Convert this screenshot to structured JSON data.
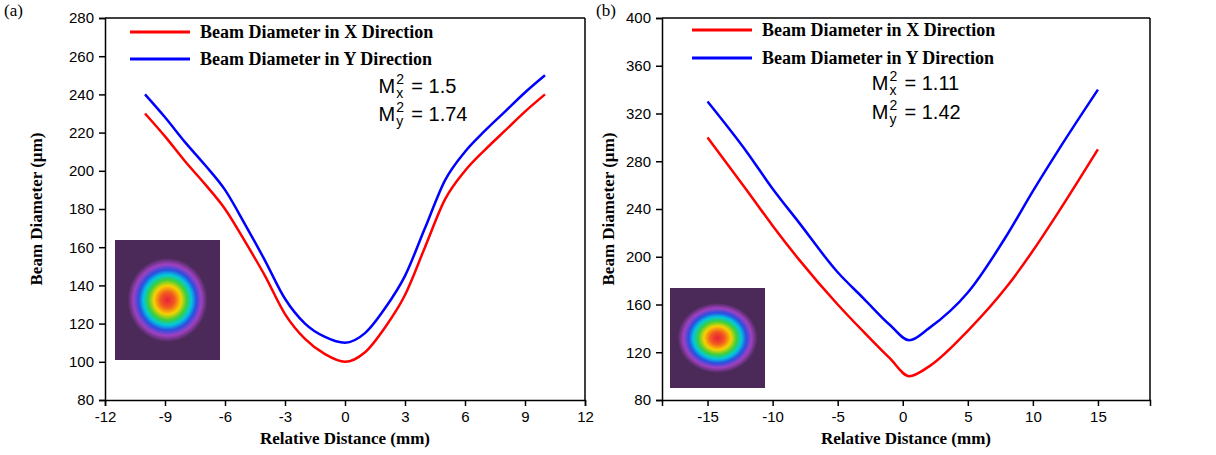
{
  "chart_data": [
    {
      "type": "line",
      "panel_label": "(a)",
      "x_label": "Relative Distance (mm)",
      "y_label": "Beam Diameter (µm)",
      "x": [
        -10,
        -9,
        -8,
        -7,
        -6,
        -5,
        -4,
        -3,
        -2,
        -1,
        0,
        1,
        2,
        3,
        4,
        5,
        6,
        7,
        8,
        9,
        10
      ],
      "series": [
        {
          "name": "Beam Diameter in X Direction",
          "color": "#ff0000",
          "values": [
            230,
            218,
            205,
            193,
            180,
            163,
            145,
            125,
            112,
            104,
            100,
            105,
            118,
            135,
            160,
            185,
            200,
            211,
            221,
            231,
            240
          ]
        },
        {
          "name": "Beam Diameter in Y Direction",
          "color": "#0000ff",
          "values": [
            240,
            228,
            215,
            203,
            190,
            172,
            153,
            133,
            120,
            113,
            110,
            115,
            128,
            145,
            170,
            195,
            210,
            221,
            231,
            241,
            250
          ]
        }
      ],
      "xlim": [
        -12,
        12
      ],
      "xticks": [
        -12,
        -9,
        -6,
        -3,
        0,
        3,
        6,
        9,
        12
      ],
      "ylim": [
        80,
        280
      ],
      "yticks": [
        80,
        100,
        120,
        140,
        160,
        180,
        200,
        220,
        240,
        260,
        280
      ],
      "legend": "top",
      "annotations": [
        {
          "symbol": "M",
          "subscript": "x",
          "superscript": "2",
          "text": "= 1.5"
        },
        {
          "symbol": "M",
          "subscript": "y",
          "superscript": "2",
          "text": "= 1.74"
        }
      ]
    },
    {
      "type": "line",
      "panel_label": "(b)",
      "x_label": "Relative Distance (mm)",
      "y_label": "Beam Diameter (µm)",
      "x": [
        -15,
        -12,
        -10,
        -8,
        -5,
        -3,
        -1,
        0.5,
        2,
        5,
        8,
        10,
        12,
        15
      ],
      "series": [
        {
          "name": "Beam Diameter in X Direction",
          "color": "#ff0000",
          "values": [
            300,
            256,
            226,
            198,
            160,
            137,
            115,
            100,
            108,
            138,
            175,
            205,
            238,
            290
          ]
        },
        {
          "name": "Beam Diameter in Y Direction",
          "color": "#0000ff",
          "values": [
            330,
            288,
            257,
            229,
            187,
            165,
            143,
            130,
            140,
            170,
            218,
            255,
            290,
            340
          ]
        }
      ],
      "xlim": [
        -18.5,
        19
      ],
      "xticks": [
        -15,
        -10,
        -5,
        0,
        5,
        10,
        15
      ],
      "ylim": [
        80,
        400
      ],
      "yticks": [
        80,
        120,
        160,
        200,
        240,
        280,
        320,
        360,
        400
      ],
      "legend": "top",
      "annotations": [
        {
          "symbol": "M",
          "subscript": "x",
          "superscript": "2",
          "text": "= 1.11"
        },
        {
          "symbol": "M",
          "subscript": "y",
          "superscript": "2",
          "text": "= 1.42"
        }
      ]
    }
  ]
}
